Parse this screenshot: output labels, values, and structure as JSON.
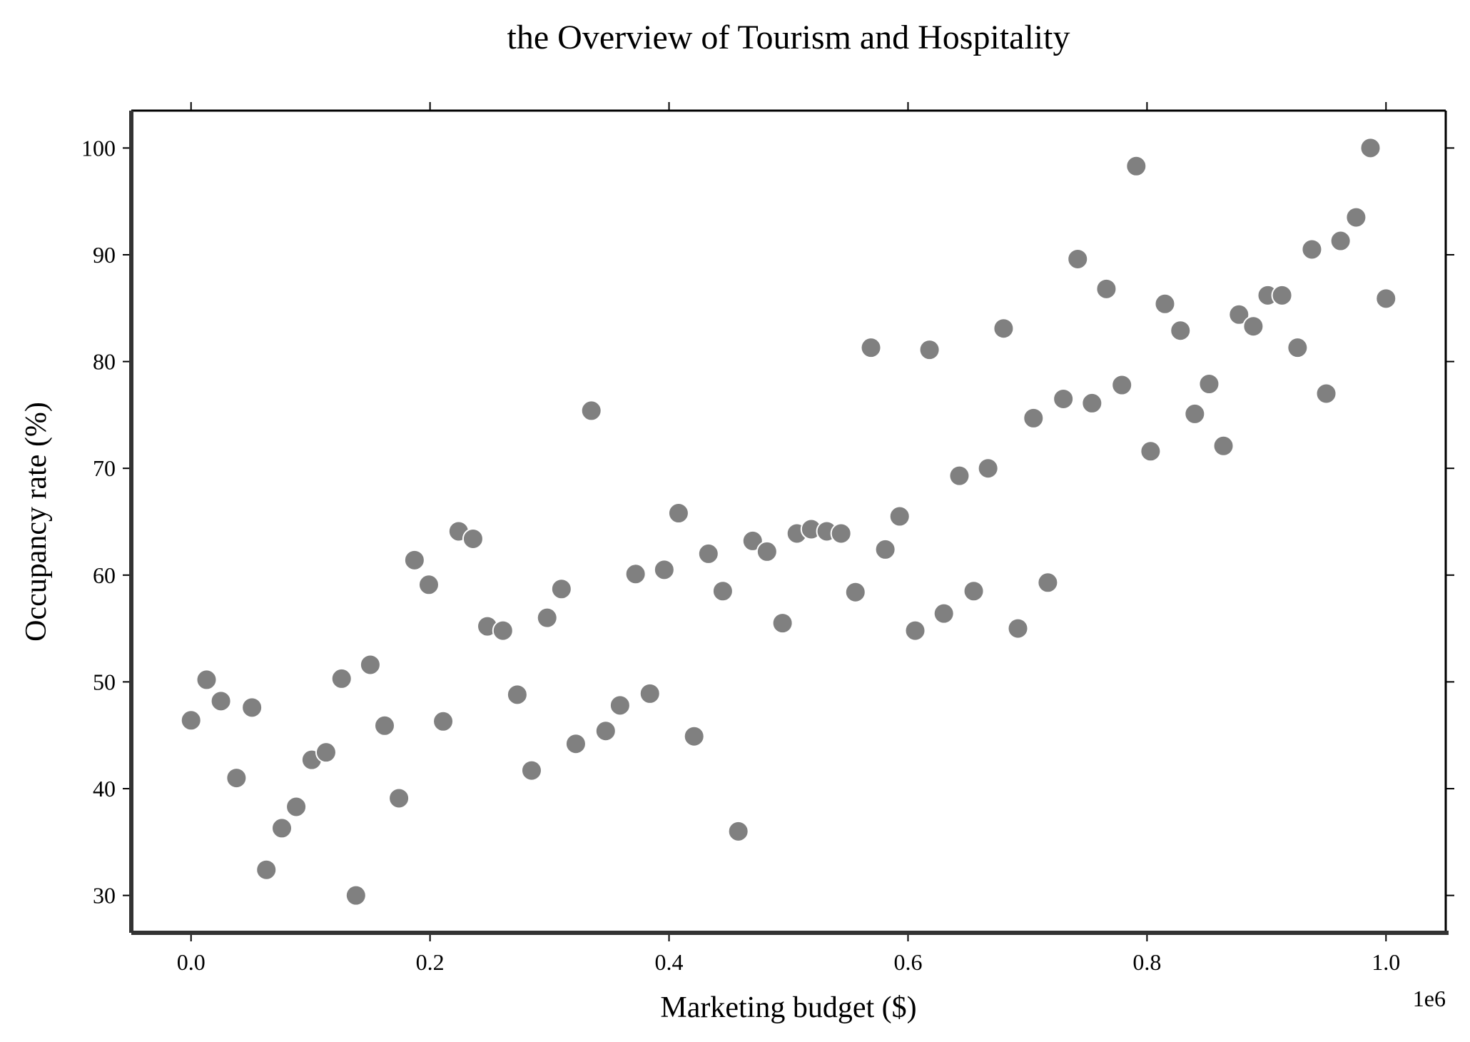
{
  "chart_data": {
    "type": "scatter",
    "title": "the Overview of Tourism and Hospitality",
    "xlabel": "Marketing budget ($)",
    "ylabel": "Occupancy rate (%)",
    "x_offset_label": "1e6",
    "xlim": [
      -0.05,
      1.05
    ],
    "ylim": [
      26.5,
      103.5
    ],
    "x_ticks": [
      0.0,
      0.2,
      0.4,
      0.6,
      0.8,
      1.0
    ],
    "x_tick_labels": [
      "0.0",
      "0.2",
      "0.4",
      "0.6",
      "0.8",
      "1.0"
    ],
    "y_ticks": [
      30,
      40,
      50,
      60,
      70,
      80,
      90,
      100
    ],
    "y_tick_labels": [
      "30",
      "40",
      "50",
      "60",
      "70",
      "80",
      "90",
      "100"
    ],
    "grid": false,
    "marker_color": "#808080",
    "marker_edge_color": "#ffffff",
    "points": [
      {
        "x": 0.0,
        "y": 46.4
      },
      {
        "x": 0.013,
        "y": 50.2
      },
      {
        "x": 0.025,
        "y": 48.2
      },
      {
        "x": 0.038,
        "y": 41.0
      },
      {
        "x": 0.051,
        "y": 47.6
      },
      {
        "x": 0.063,
        "y": 32.4
      },
      {
        "x": 0.076,
        "y": 36.3
      },
      {
        "x": 0.088,
        "y": 38.3
      },
      {
        "x": 0.101,
        "y": 42.7
      },
      {
        "x": 0.113,
        "y": 43.4
      },
      {
        "x": 0.126,
        "y": 50.3
      },
      {
        "x": 0.138,
        "y": 30.0
      },
      {
        "x": 0.15,
        "y": 51.6
      },
      {
        "x": 0.162,
        "y": 45.9
      },
      {
        "x": 0.174,
        "y": 39.1
      },
      {
        "x": 0.187,
        "y": 61.4
      },
      {
        "x": 0.199,
        "y": 59.1
      },
      {
        "x": 0.211,
        "y": 46.3
      },
      {
        "x": 0.224,
        "y": 64.1
      },
      {
        "x": 0.236,
        "y": 63.4
      },
      {
        "x": 0.248,
        "y": 55.2
      },
      {
        "x": 0.261,
        "y": 54.8
      },
      {
        "x": 0.273,
        "y": 48.8
      },
      {
        "x": 0.285,
        "y": 41.7
      },
      {
        "x": 0.298,
        "y": 56.0
      },
      {
        "x": 0.31,
        "y": 58.7
      },
      {
        "x": 0.322,
        "y": 44.2
      },
      {
        "x": 0.335,
        "y": 75.4
      },
      {
        "x": 0.347,
        "y": 45.4
      },
      {
        "x": 0.359,
        "y": 47.8
      },
      {
        "x": 0.372,
        "y": 60.1
      },
      {
        "x": 0.384,
        "y": 48.9
      },
      {
        "x": 0.396,
        "y": 60.5
      },
      {
        "x": 0.408,
        "y": 65.8
      },
      {
        "x": 0.421,
        "y": 44.9
      },
      {
        "x": 0.433,
        "y": 62.0
      },
      {
        "x": 0.445,
        "y": 58.5
      },
      {
        "x": 0.458,
        "y": 36.0
      },
      {
        "x": 0.47,
        "y": 63.2
      },
      {
        "x": 0.482,
        "y": 62.2
      },
      {
        "x": 0.495,
        "y": 55.5
      },
      {
        "x": 0.507,
        "y": 63.9
      },
      {
        "x": 0.519,
        "y": 64.3
      },
      {
        "x": 0.532,
        "y": 64.1
      },
      {
        "x": 0.544,
        "y": 63.9
      },
      {
        "x": 0.556,
        "y": 58.4
      },
      {
        "x": 0.569,
        "y": 81.3
      },
      {
        "x": 0.581,
        "y": 62.4
      },
      {
        "x": 0.593,
        "y": 65.5
      },
      {
        "x": 0.606,
        "y": 54.8
      },
      {
        "x": 0.618,
        "y": 81.1
      },
      {
        "x": 0.63,
        "y": 56.4
      },
      {
        "x": 0.643,
        "y": 69.3
      },
      {
        "x": 0.655,
        "y": 58.5
      },
      {
        "x": 0.667,
        "y": 70.0
      },
      {
        "x": 0.68,
        "y": 83.1
      },
      {
        "x": 0.692,
        "y": 55.0
      },
      {
        "x": 0.705,
        "y": 74.7
      },
      {
        "x": 0.717,
        "y": 59.3
      },
      {
        "x": 0.73,
        "y": 76.5
      },
      {
        "x": 0.742,
        "y": 89.6
      },
      {
        "x": 0.754,
        "y": 76.1
      },
      {
        "x": 0.766,
        "y": 86.8
      },
      {
        "x": 0.779,
        "y": 77.8
      },
      {
        "x": 0.791,
        "y": 98.3
      },
      {
        "x": 0.803,
        "y": 71.6
      },
      {
        "x": 0.815,
        "y": 85.4
      },
      {
        "x": 0.828,
        "y": 82.9
      },
      {
        "x": 0.84,
        "y": 75.1
      },
      {
        "x": 0.852,
        "y": 77.9
      },
      {
        "x": 0.864,
        "y": 72.1
      },
      {
        "x": 0.877,
        "y": 84.4
      },
      {
        "x": 0.889,
        "y": 83.3
      },
      {
        "x": 0.901,
        "y": 86.2
      },
      {
        "x": 0.913,
        "y": 86.2
      },
      {
        "x": 0.926,
        "y": 81.3
      },
      {
        "x": 0.938,
        "y": 90.5
      },
      {
        "x": 0.95,
        "y": 77.0
      },
      {
        "x": 0.962,
        "y": 91.3
      },
      {
        "x": 0.975,
        "y": 93.5
      },
      {
        "x": 0.987,
        "y": 100.0
      },
      {
        "x": 1.0,
        "y": 85.9
      }
    ]
  }
}
